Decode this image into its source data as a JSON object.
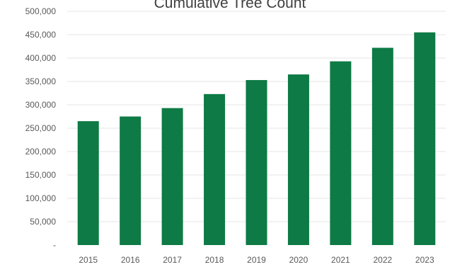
{
  "chart_data": {
    "type": "bar",
    "title": "Cumulative Tree Count",
    "xlabel": "",
    "ylabel": "",
    "categories": [
      "2015",
      "2016",
      "2017",
      "2018",
      "2019",
      "2020",
      "2021",
      "2022",
      "2023"
    ],
    "values": [
      265000,
      275000,
      293000,
      323000,
      353000,
      365000,
      393000,
      422000,
      455000
    ],
    "ylim": [
      0,
      500000
    ],
    "yticks": [
      0,
      50000,
      100000,
      150000,
      200000,
      250000,
      300000,
      350000,
      400000,
      450000,
      500000
    ],
    "ytick_labels": [
      "-",
      "50,000",
      "100,000",
      "150,000",
      "200,000",
      "250,000",
      "300,000",
      "350,000",
      "400,000",
      "450,000",
      "500,000"
    ],
    "grid": true,
    "legend": "none",
    "colors": {
      "bar": "#0e7a45",
      "grid": "#e6e6e6",
      "text": "#595959",
      "title": "#404040"
    }
  }
}
